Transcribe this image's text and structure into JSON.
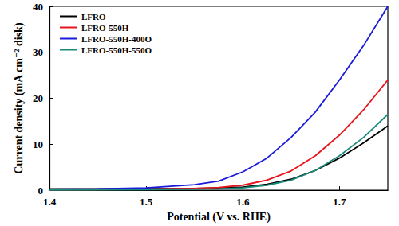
{
  "chart_data": {
    "type": "line",
    "x_label": "Potential (V vs. RHE)",
    "y_label": "Current density (mA cm⁻² disk)",
    "x": [
      1.4,
      1.45,
      1.5,
      1.55,
      1.575,
      1.6,
      1.625,
      1.65,
      1.675,
      1.7,
      1.725,
      1.75
    ],
    "series": [
      {
        "name": "LFRO",
        "color": "#000000",
        "values": [
          0.3,
          0.3,
          0.35,
          0.4,
          0.5,
          0.7,
          1.3,
          2.4,
          4.3,
          7,
          10.3,
          14
        ]
      },
      {
        "name": "LFRO-550H",
        "color": "#e8141b",
        "values": [
          0.1,
          0.15,
          0.2,
          0.4,
          0.6,
          1.1,
          2.2,
          4.2,
          7.5,
          12,
          17.5,
          24
        ]
      },
      {
        "name": "LFRO-550H-400O",
        "color": "#1a1adc",
        "values": [
          0.2,
          0.3,
          0.5,
          1.2,
          2,
          4,
          7,
          11.5,
          17,
          24,
          31.5,
          40
        ]
      },
      {
        "name": "LFRO-550H-550O",
        "color": "#1a8a7a",
        "values": [
          0.05,
          0.1,
          0.15,
          0.2,
          0.3,
          0.5,
          1.1,
          2.2,
          4.3,
          7.5,
          11.5,
          16.5
        ]
      }
    ],
    "xlim": [
      1.4,
      1.75
    ],
    "xticks": [
      1.4,
      1.5,
      1.6,
      1.7
    ],
    "ylim": [
      0,
      40
    ],
    "yticks": [
      0,
      10,
      20,
      30,
      40
    ],
    "grid": false,
    "legend": "upper left"
  }
}
